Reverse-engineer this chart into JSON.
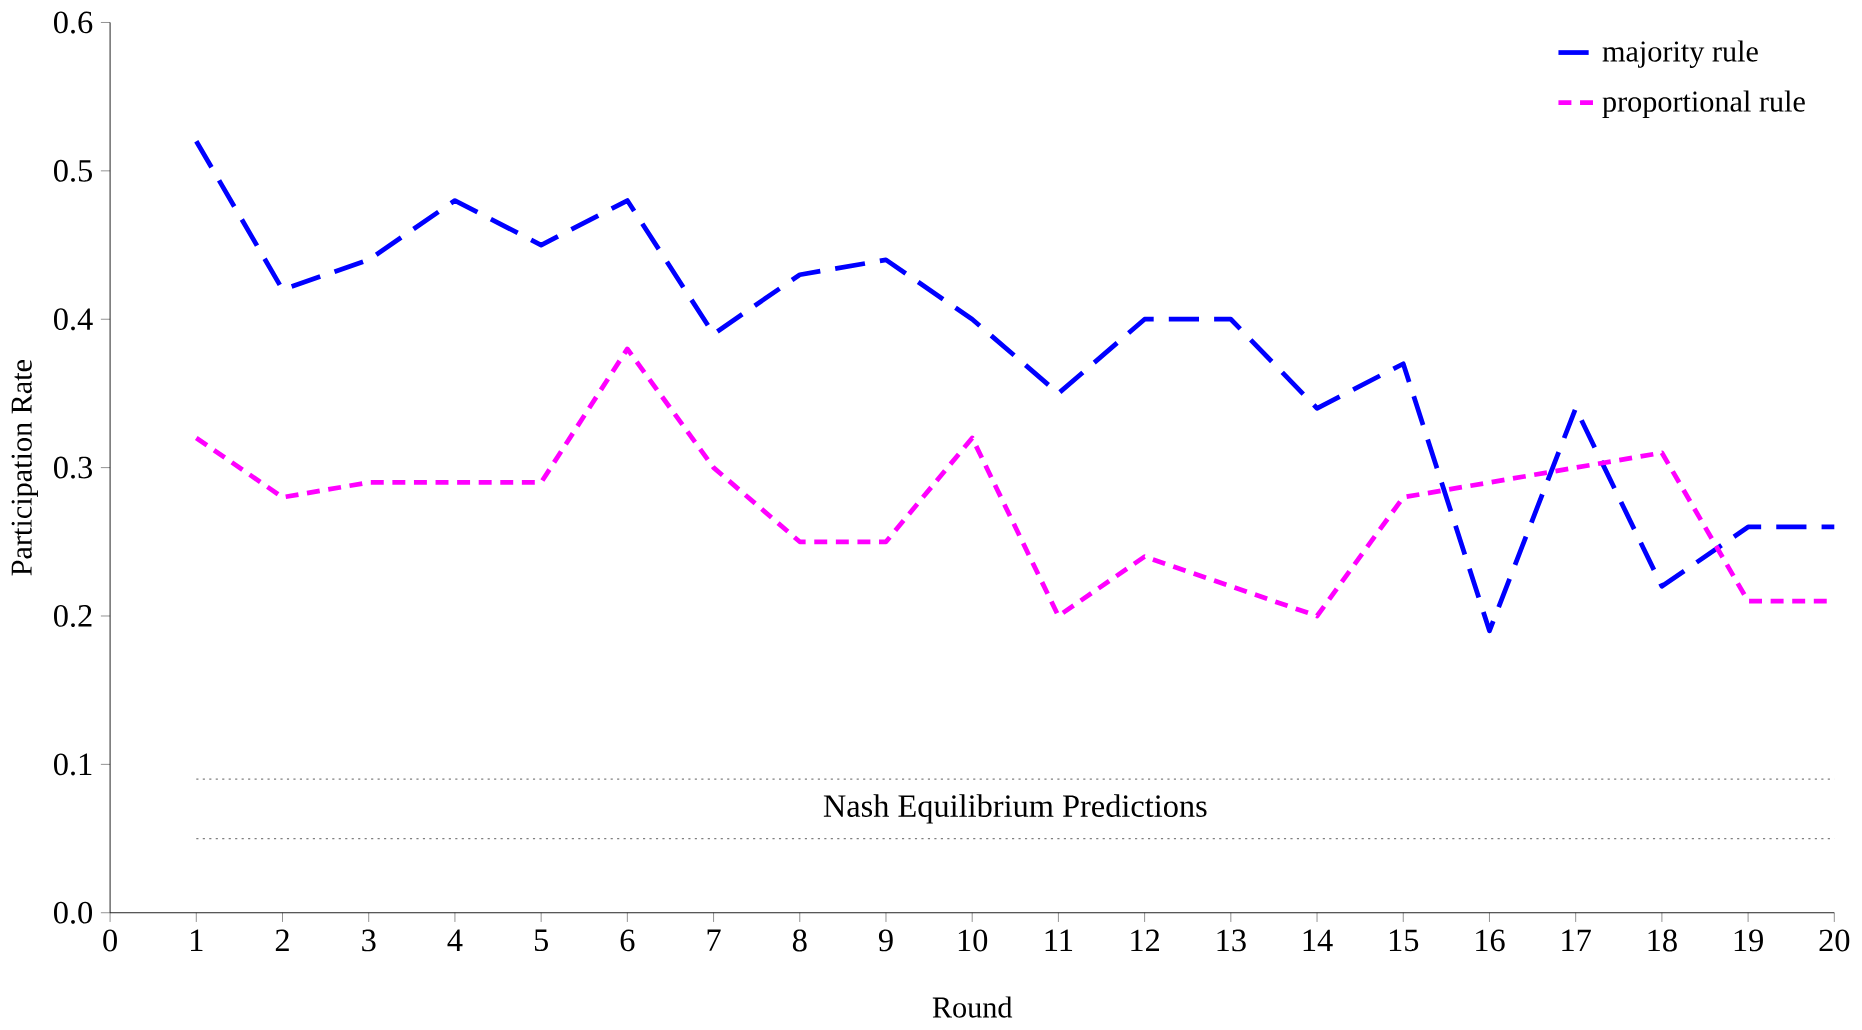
{
  "chart_data": {
    "type": "line",
    "xlabel": "Round",
    "ylabel": "Participation Rate",
    "x": [
      1,
      2,
      3,
      4,
      5,
      6,
      7,
      8,
      9,
      10,
      11,
      12,
      13,
      14,
      15,
      16,
      17,
      18,
      19,
      20
    ],
    "series": [
      {
        "name": "majority rule",
        "color": "#0000ff",
        "line_style": "dashed",
        "values": [
          0.52,
          0.42,
          0.44,
          0.48,
          0.45,
          0.48,
          0.39,
          0.43,
          0.44,
          0.4,
          0.35,
          0.4,
          0.4,
          0.34,
          0.37,
          0.19,
          0.34,
          0.22,
          0.26,
          0.26
        ]
      },
      {
        "name": "proportional rule",
        "color": "#ff00ff",
        "line_style": "dashed",
        "values": [
          0.32,
          0.28,
          0.29,
          0.29,
          0.29,
          0.38,
          0.3,
          0.25,
          0.25,
          0.32,
          0.2,
          0.24,
          0.22,
          0.2,
          0.28,
          0.29,
          0.3,
          0.31,
          0.21,
          0.21
        ]
      }
    ],
    "xlim": [
      0,
      20
    ],
    "xticks": [
      0,
      1,
      2,
      3,
      4,
      5,
      6,
      7,
      8,
      9,
      10,
      11,
      12,
      13,
      14,
      15,
      16,
      17,
      18,
      19,
      20
    ],
    "ylim": [
      0,
      0.6
    ],
    "yticks": [
      {
        "value": 0,
        "label": "0.0"
      },
      0.1,
      0.2,
      0.3,
      0.4,
      0.5,
      0.6
    ],
    "ref_lines": [
      {
        "axis": "y",
        "value": 0.09,
        "color": "#808080",
        "line_style": "dotted"
      },
      {
        "axis": "y",
        "value": 0.05,
        "color": "#808080",
        "line_style": "dotted"
      }
    ],
    "annotations": [
      "Nash Equilibrium Predictions"
    ],
    "legend": "top right",
    "grid": false,
    "marker": "none"
  }
}
